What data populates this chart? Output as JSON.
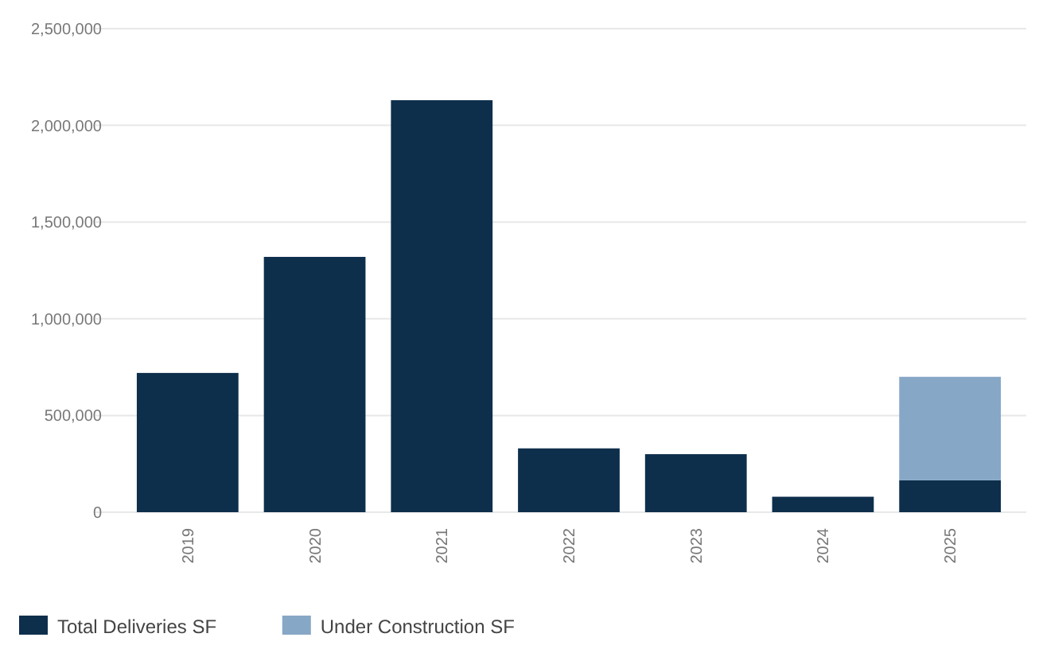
{
  "chart_data": {
    "type": "bar",
    "stacked": true,
    "categories": [
      "2019",
      "2020",
      "2021",
      "2022",
      "2023",
      "2024",
      "2025"
    ],
    "series": [
      {
        "name": "Total Deliveries SF",
        "color": "#0e2f4c",
        "values": [
          720000,
          1320000,
          2130000,
          330000,
          300000,
          80000,
          165000
        ]
      },
      {
        "name": "Under Construction SF",
        "color": "#87a7c6",
        "values": [
          null,
          null,
          null,
          null,
          null,
          null,
          535000
        ]
      }
    ],
    "ylim": [
      0,
      2500000
    ],
    "yticks": [
      {
        "value": 0,
        "label": "0"
      },
      {
        "value": 500000,
        "label": "500,000"
      },
      {
        "value": 1000000,
        "label": "1,000,000"
      },
      {
        "value": 1500000,
        "label": "1,500,000"
      },
      {
        "value": 2000000,
        "label": "2,000,000"
      },
      {
        "value": 2500000,
        "label": "2,500,000"
      }
    ],
    "grid": "y",
    "legend": "bottom left"
  }
}
